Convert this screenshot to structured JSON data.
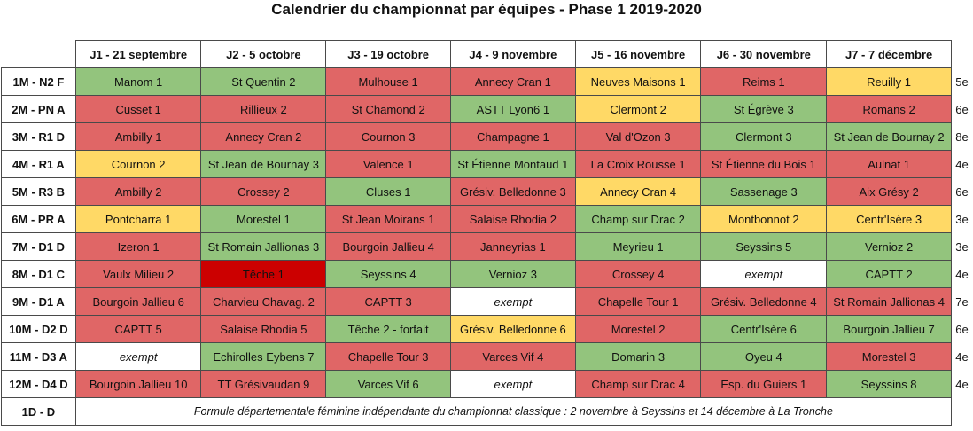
{
  "title": "Calendrier du championnat par équipes - Phase 1 2019-2020",
  "rounds": [
    "J1 - 21 septembre",
    "J2 - 5 octobre",
    "J3 - 19 octobre",
    "J4 - 9 novembre",
    "J5 - 16 novembre",
    "J6 - 30 novembre",
    "J7 - 7 décembre"
  ],
  "colors": {
    "g": "#93c47d",
    "r": "#e06666",
    "y": "#ffd966",
    "dr": "#cc0000",
    "w": "#ffffff"
  },
  "teams": [
    {
      "name": "1M - N2 F",
      "rank": "5e",
      "matches": [
        {
          "text": "Manom 1",
          "color": "g"
        },
        {
          "text": "St Quentin 2",
          "color": "g"
        },
        {
          "text": "Mulhouse 1",
          "color": "r"
        },
        {
          "text": "Annecy Cran 1",
          "color": "r"
        },
        {
          "text": "Neuves Maisons 1",
          "color": "y"
        },
        {
          "text": "Reims 1",
          "color": "r"
        },
        {
          "text": "Reuilly 1",
          "color": "y"
        }
      ]
    },
    {
      "name": "2M - PN A",
      "rank": "6e",
      "matches": [
        {
          "text": "Cusset 1",
          "color": "r"
        },
        {
          "text": "Rillieux 2",
          "color": "r"
        },
        {
          "text": "St Chamond 2",
          "color": "r"
        },
        {
          "text": "ASTT Lyon6 1",
          "color": "g"
        },
        {
          "text": "Clermont 2",
          "color": "y"
        },
        {
          "text": "St Égrève 3",
          "color": "g"
        },
        {
          "text": "Romans 2",
          "color": "r"
        }
      ]
    },
    {
      "name": "3M - R1 D",
      "rank": "8e",
      "matches": [
        {
          "text": "Ambilly 1",
          "color": "r"
        },
        {
          "text": "Annecy Cran 2",
          "color": "r"
        },
        {
          "text": "Cournon 3",
          "color": "r"
        },
        {
          "text": "Champagne 1",
          "color": "r"
        },
        {
          "text": "Val d'Ozon 3",
          "color": "r"
        },
        {
          "text": "Clermont 3",
          "color": "g"
        },
        {
          "text": "St Jean de Bournay 2",
          "color": "g"
        }
      ]
    },
    {
      "name": "4M - R1 A",
      "rank": "4e",
      "matches": [
        {
          "text": "Cournon 2",
          "color": "y"
        },
        {
          "text": "St Jean de Bournay 3",
          "color": "g"
        },
        {
          "text": "Valence 1",
          "color": "r"
        },
        {
          "text": "St Étienne Montaud 1",
          "color": "g"
        },
        {
          "text": "La Croix Rousse 1",
          "color": "r"
        },
        {
          "text": "St Étienne du Bois 1",
          "color": "r"
        },
        {
          "text": "Aulnat 1",
          "color": "r"
        }
      ]
    },
    {
      "name": "5M - R3 B",
      "rank": "6e",
      "matches": [
        {
          "text": "Ambilly 2",
          "color": "r"
        },
        {
          "text": "Crossey 2",
          "color": "r"
        },
        {
          "text": "Cluses 1",
          "color": "g"
        },
        {
          "text": "Grésiv. Belledonne 3",
          "color": "r"
        },
        {
          "text": "Annecy Cran 4",
          "color": "y"
        },
        {
          "text": "Sassenage 3",
          "color": "g"
        },
        {
          "text": "Aix Grésy 2",
          "color": "r"
        }
      ]
    },
    {
      "name": "6M - PR A",
      "rank": "3e",
      "matches": [
        {
          "text": "Pontcharra 1",
          "color": "y"
        },
        {
          "text": "Morestel 1",
          "color": "g"
        },
        {
          "text": "St Jean Moirans 1",
          "color": "r"
        },
        {
          "text": "Salaise Rhodia 2",
          "color": "r"
        },
        {
          "text": "Champ sur Drac 2",
          "color": "g"
        },
        {
          "text": "Montbonnot 2",
          "color": "y"
        },
        {
          "text": "Centr'Isère 3",
          "color": "y"
        }
      ]
    },
    {
      "name": "7M - D1 D",
      "rank": "3e",
      "matches": [
        {
          "text": "Izeron 1",
          "color": "r"
        },
        {
          "text": "St Romain Jallionas 3",
          "color": "g"
        },
        {
          "text": "Bourgoin Jallieu 4",
          "color": "r"
        },
        {
          "text": "Janneyrias 1",
          "color": "r"
        },
        {
          "text": "Meyrieu 1",
          "color": "g"
        },
        {
          "text": "Seyssins 5",
          "color": "g"
        },
        {
          "text": "Vernioz 2",
          "color": "g"
        }
      ]
    },
    {
      "name": "8M - D1 C",
      "rank": "4e",
      "matches": [
        {
          "text": "Vaulx Milieu 2",
          "color": "r"
        },
        {
          "text": "Têche 1",
          "color": "dr"
        },
        {
          "text": "Seyssins 4",
          "color": "g"
        },
        {
          "text": "Vernioz 3",
          "color": "g"
        },
        {
          "text": "Crossey 4",
          "color": "r"
        },
        {
          "text": "exempt",
          "color": "w"
        },
        {
          "text": "CAPTT 2",
          "color": "g"
        }
      ]
    },
    {
      "name": "9M - D1 A",
      "rank": "7e",
      "matches": [
        {
          "text": "Bourgoin Jallieu 6",
          "color": "r"
        },
        {
          "text": "Charvieu Chavag. 2",
          "color": "r"
        },
        {
          "text": "CAPTT 3",
          "color": "r"
        },
        {
          "text": "exempt",
          "color": "w"
        },
        {
          "text": "Chapelle Tour 1",
          "color": "r"
        },
        {
          "text": "Grésiv. Belledonne 4",
          "color": "r"
        },
        {
          "text": "St Romain Jallionas 4",
          "color": "r"
        }
      ]
    },
    {
      "name": "10M - D2 D",
      "rank": "6e",
      "matches": [
        {
          "text": "CAPTT 5",
          "color": "r"
        },
        {
          "text": "Salaise Rhodia 5",
          "color": "r"
        },
        {
          "text": "Têche 2 - forfait",
          "color": "g"
        },
        {
          "text": "Grésiv. Belledonne 6",
          "color": "y"
        },
        {
          "text": "Morestel 2",
          "color": "r"
        },
        {
          "text": "Centr'Isère 6",
          "color": "g"
        },
        {
          "text": "Bourgoin Jallieu 7",
          "color": "g"
        }
      ]
    },
    {
      "name": "11M - D3 A",
      "rank": "4e",
      "matches": [
        {
          "text": "exempt",
          "color": "w"
        },
        {
          "text": "Echirolles Eybens 7",
          "color": "g"
        },
        {
          "text": "Chapelle Tour 3",
          "color": "r"
        },
        {
          "text": "Varces Vif 4",
          "color": "r"
        },
        {
          "text": "Domarin 3",
          "color": "g"
        },
        {
          "text": "Oyeu 4",
          "color": "g"
        },
        {
          "text": "Morestel 3",
          "color": "r"
        }
      ]
    },
    {
      "name": "12M - D4 D",
      "rank": "4e",
      "matches": [
        {
          "text": "Bourgoin Jallieu 10",
          "color": "r"
        },
        {
          "text": "TT Grésivaudan 9",
          "color": "r"
        },
        {
          "text": "Varces Vif 6",
          "color": "g"
        },
        {
          "text": "exempt",
          "color": "w"
        },
        {
          "text": "Champ sur Drac 4",
          "color": "r"
        },
        {
          "text": "Esp. du Guiers 1",
          "color": "r"
        },
        {
          "text": "Seyssins 8",
          "color": "g"
        }
      ]
    }
  ],
  "footer": {
    "name": "1D - D",
    "note": "Formule départementale féminine indépendante du championnat classique : 2 novembre à Seyssins et 14 décembre à La Tronche"
  }
}
